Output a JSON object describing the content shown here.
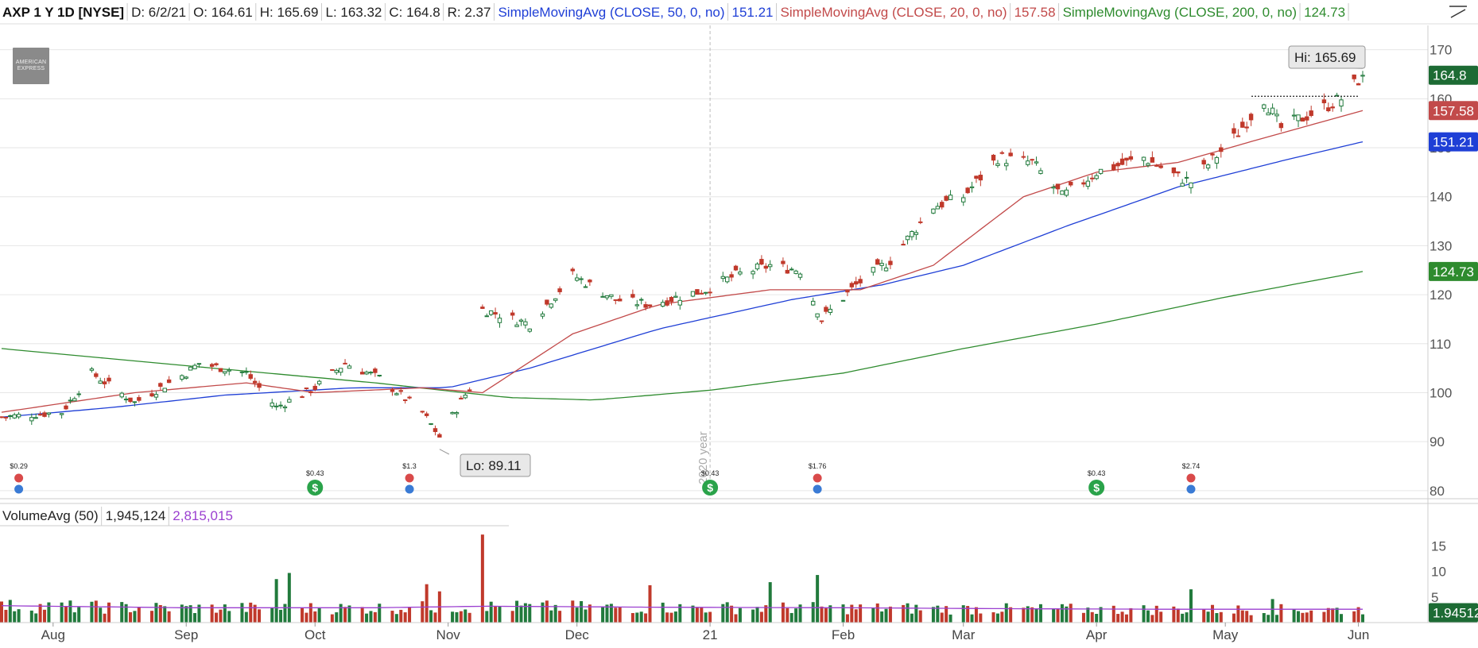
{
  "header": {
    "symbol": "AXP 1 Y 1D [NYSE]",
    "date": "D: 6/2/21",
    "open": "O: 164.61",
    "high": "H: 165.69",
    "low": "L: 163.32",
    "close": "C: 164.8",
    "range": "R: 2.37",
    "sma50_label": "SimpleMovingAvg (CLOSE, 50, 0, no)",
    "sma50_value": "151.21",
    "sma20_label": "SimpleMovingAvg (CLOSE, 20, 0, no)",
    "sma20_value": "157.58",
    "sma200_label": "SimpleMovingAvg (CLOSE, 200, 0, no)",
    "sma200_value": "124.73"
  },
  "logo": {
    "line1": "AMERICAN",
    "line2": "EXPRESS"
  },
  "colors": {
    "up": "#217a3c",
    "down": "#c0392b",
    "sma50": "#1f3fd6",
    "sma20": "#c24a4a",
    "sma200": "#2e8b2e",
    "volavg": "#9b3fd0",
    "grid": "#e6e6e6"
  },
  "chart_data": {
    "type": "candlestick",
    "title": "AXP 1 Y 1D [NYSE]",
    "y_ticks": [
      80,
      90,
      100,
      110,
      120,
      130,
      140,
      150,
      160,
      170
    ],
    "ylim": [
      79,
      174
    ],
    "x_tick_labels": [
      "Aug",
      "Sep",
      "Oct",
      "Nov",
      "Dec",
      "21",
      "Feb",
      "Mar",
      "Apr",
      "May",
      "Jun"
    ],
    "date_range": [
      "2020-07-20",
      "2021-06-02"
    ],
    "last": {
      "open": 164.61,
      "high": 165.69,
      "low": 163.32,
      "close": 164.8
    },
    "price_tags": [
      {
        "label": "164.8",
        "value": 164.8,
        "color": "#1d6b34"
      },
      {
        "label": "157.58",
        "value": 157.58,
        "color": "#c24a4a"
      },
      {
        "label": "151.21",
        "value": 151.21,
        "color": "#1f3fd6"
      },
      {
        "label": "124.73",
        "value": 124.73,
        "color": "#2e8b2e"
      }
    ],
    "annotations": {
      "high": {
        "label": "Hi: 165.69",
        "value": 165.69
      },
      "low": {
        "label": "Lo: 89.11",
        "value": 89.11
      },
      "year_marker": "2020 year"
    },
    "close_keyframes": [
      [
        "2020-07-20",
        95
      ],
      [
        "2020-08-03",
        96
      ],
      [
        "2020-08-10",
        104
      ],
      [
        "2020-08-20",
        98
      ],
      [
        "2020-09-01",
        104
      ],
      [
        "2020-09-04",
        106
      ],
      [
        "2020-09-15",
        104
      ],
      [
        "2020-09-22",
        97
      ],
      [
        "2020-10-01",
        101
      ],
      [
        "2020-10-08",
        106
      ],
      [
        "2020-10-16",
        103
      ],
      [
        "2020-10-26",
        96
      ],
      [
        "2020-10-30",
        91
      ],
      [
        "2020-11-06",
        101
      ],
      [
        "2020-11-09",
        117
      ],
      [
        "2020-11-20",
        114
      ],
      [
        "2020-11-30",
        124
      ],
      [
        "2020-12-10",
        119
      ],
      [
        "2020-12-18",
        118
      ],
      [
        "2020-12-31",
        121
      ],
      [
        "2021-01-07",
        124
      ],
      [
        "2021-01-15",
        126
      ],
      [
        "2021-01-22",
        125
      ],
      [
        "2021-01-27",
        115
      ],
      [
        "2021-02-04",
        122
      ],
      [
        "2021-02-12",
        127
      ],
      [
        "2021-02-22",
        138
      ],
      [
        "2021-03-01",
        140
      ],
      [
        "2021-03-09",
        148
      ],
      [
        "2021-03-17",
        147
      ],
      [
        "2021-03-24",
        140
      ],
      [
        "2021-04-01",
        145
      ],
      [
        "2021-04-12",
        148
      ],
      [
        "2021-04-20",
        144
      ],
      [
        "2021-04-23",
        143
      ],
      [
        "2021-05-03",
        152
      ],
      [
        "2021-05-10",
        160
      ],
      [
        "2021-05-14",
        154
      ],
      [
        "2021-05-21",
        157
      ],
      [
        "2021-05-28",
        160
      ],
      [
        "2021-06-02",
        164.8
      ]
    ],
    "sma20_keyframes": [
      [
        "2020-07-20",
        96
      ],
      [
        "2020-08-20",
        100
      ],
      [
        "2020-09-15",
        102
      ],
      [
        "2020-10-01",
        100
      ],
      [
        "2020-10-26",
        101
      ],
      [
        "2020-11-09",
        100
      ],
      [
        "2020-11-30",
        112
      ],
      [
        "2020-12-20",
        118
      ],
      [
        "2021-01-15",
        121
      ],
      [
        "2021-02-05",
        121
      ],
      [
        "2021-02-22",
        126
      ],
      [
        "2021-03-15",
        140
      ],
      [
        "2021-04-01",
        145
      ],
      [
        "2021-04-20",
        147
      ],
      [
        "2021-05-10",
        152
      ],
      [
        "2021-06-02",
        157.58
      ]
    ],
    "sma50_keyframes": [
      [
        "2020-07-20",
        95
      ],
      [
        "2020-08-15",
        97
      ],
      [
        "2020-09-10",
        99.5
      ],
      [
        "2020-10-10",
        101
      ],
      [
        "2020-11-01",
        101
      ],
      [
        "2020-11-20",
        105
      ],
      [
        "2020-12-20",
        113
      ],
      [
        "2021-01-20",
        119
      ],
      [
        "2021-02-10",
        122
      ],
      [
        "2021-03-01",
        126
      ],
      [
        "2021-03-25",
        134
      ],
      [
        "2021-04-20",
        142
      ],
      [
        "2021-05-15",
        147.5
      ],
      [
        "2021-06-02",
        151.21
      ]
    ],
    "sma200_keyframes": [
      [
        "2020-07-20",
        109
      ],
      [
        "2020-09-01",
        105.5
      ],
      [
        "2020-10-15",
        102
      ],
      [
        "2020-11-15",
        99
      ],
      [
        "2020-12-05",
        98.5
      ],
      [
        "2021-01-01",
        100.5
      ],
      [
        "2021-02-01",
        104
      ],
      [
        "2021-03-01",
        109
      ],
      [
        "2021-04-01",
        114
      ],
      [
        "2021-05-01",
        119.5
      ],
      [
        "2021-06-02",
        124.73
      ]
    ],
    "dividends": [
      {
        "date": "2020-10-01",
        "label": "$0.43"
      },
      {
        "date": "2021-01-01",
        "label": "$0.43"
      },
      {
        "date": "2021-04-01",
        "label": "$0.43"
      }
    ],
    "earnings": [
      {
        "date": "2020-07-24",
        "label": "$0.29"
      },
      {
        "date": "2020-10-23",
        "label": "$1.3"
      },
      {
        "date": "2021-01-26",
        "label": "$1.76"
      },
      {
        "date": "2021-04-23",
        "label": "$2.74"
      }
    ],
    "volume": {
      "label": "VolumeAvg (50)",
      "value": "1,945,124",
      "avg_value": "2,815,015",
      "tag": "1.94512",
      "y_ticks": [
        5,
        10,
        15
      ],
      "ylim": [
        0,
        18
      ],
      "avg_keyframes": [
        [
          "2020-07-20",
          3.3
        ],
        [
          "2020-09-01",
          2.9
        ],
        [
          "2020-10-15",
          2.9
        ],
        [
          "2020-11-10",
          3.2
        ],
        [
          "2020-12-20",
          3.0
        ],
        [
          "2021-02-01",
          2.9
        ],
        [
          "2021-03-15",
          2.7
        ],
        [
          "2021-04-20",
          2.6
        ],
        [
          "2021-06-02",
          2.6
        ]
      ],
      "spikes": [
        [
          "2020-11-09",
          17.2
        ],
        [
          "2020-09-22",
          8.5
        ],
        [
          "2020-09-25",
          9.7
        ],
        [
          "2020-10-27",
          7.5
        ],
        [
          "2021-01-26",
          9.3
        ],
        [
          "2021-01-15",
          7.9
        ],
        [
          "2020-12-18",
          7.3
        ],
        [
          "2021-04-23",
          6.5
        ],
        [
          "2020-10-30",
          6.1
        ],
        [
          "2021-05-12",
          4.6
        ]
      ]
    }
  }
}
